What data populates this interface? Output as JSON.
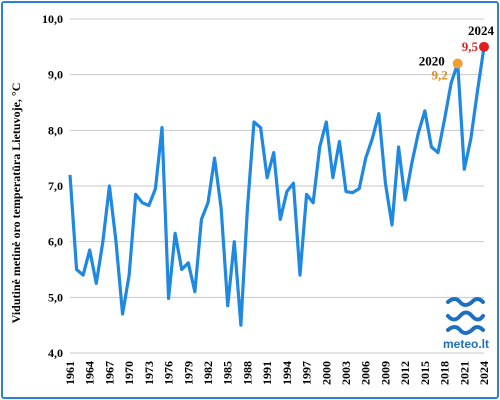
{
  "chart_data": {
    "type": "line",
    "title": "",
    "xlabel": "",
    "ylabel": "Vidutinė metinė oro temperatūra Lietuvoje, °C",
    "ylim": [
      4.0,
      10.0
    ],
    "xlim": [
      1961,
      2024
    ],
    "ytick_labels": [
      "4,0",
      "5,0",
      "6,0",
      "7,0",
      "8,0",
      "9,0",
      "10,0"
    ],
    "xtick_labels": [
      "1961",
      "1964",
      "1967",
      "1970",
      "1973",
      "1976",
      "1979",
      "1982",
      "1985",
      "1988",
      "1991",
      "1994",
      "1997",
      "2000",
      "2003",
      "2006",
      "2009",
      "2012",
      "2015",
      "2018",
      "2021",
      "2024"
    ],
    "grid": true,
    "line_color": "#1f88e0",
    "x": [
      1961,
      1962,
      1963,
      1964,
      1965,
      1966,
      1967,
      1968,
      1969,
      1970,
      1971,
      1972,
      1973,
      1974,
      1975,
      1976,
      1977,
      1978,
      1979,
      1980,
      1981,
      1982,
      1983,
      1984,
      1985,
      1986,
      1987,
      1988,
      1989,
      1990,
      1991,
      1992,
      1993,
      1994,
      1995,
      1996,
      1997,
      1998,
      1999,
      2000,
      2001,
      2002,
      2003,
      2004,
      2005,
      2006,
      2007,
      2008,
      2009,
      2010,
      2011,
      2012,
      2013,
      2014,
      2015,
      2016,
      2017,
      2018,
      2019,
      2020,
      2021,
      2022,
      2023,
      2024
    ],
    "values": [
      7.2,
      5.5,
      5.4,
      5.85,
      5.25,
      6.0,
      7.0,
      6.0,
      4.7,
      5.4,
      6.85,
      6.7,
      6.65,
      6.95,
      8.05,
      4.98,
      6.15,
      5.5,
      5.62,
      5.1,
      6.4,
      6.7,
      7.5,
      6.6,
      4.85,
      6.0,
      4.5,
      6.6,
      8.15,
      8.05,
      7.15,
      7.6,
      6.4,
      6.9,
      7.05,
      5.4,
      6.85,
      6.7,
      7.7,
      8.15,
      7.15,
      7.8,
      6.9,
      6.88,
      6.95,
      7.5,
      7.85,
      8.3,
      7.05,
      6.3,
      7.7,
      6.75,
      7.4,
      7.95,
      8.35,
      7.7,
      7.6,
      8.2,
      8.85,
      9.2,
      7.3,
      7.85,
      8.7,
      9.5
    ],
    "annotations": [
      {
        "year": "2020",
        "value_label": "9,2",
        "x": 2020,
        "y": 9.2,
        "color": "#f0a030",
        "label_color": "#e08a1c"
      },
      {
        "year": "2024",
        "value_label": "9,5",
        "x": 2024,
        "y": 9.5,
        "color": "#e02020",
        "label_color": "#e02020"
      }
    ]
  },
  "logo": {
    "text": "meteo.lt",
    "color": "#1e6fc0"
  }
}
